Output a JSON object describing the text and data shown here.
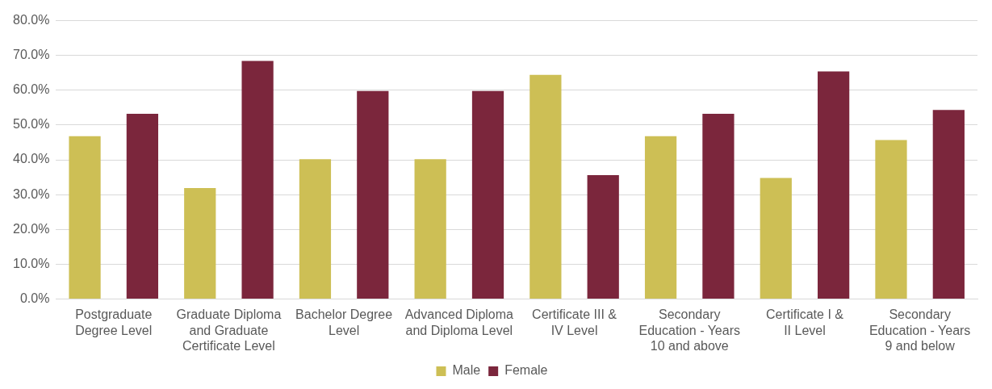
{
  "chart_data": {
    "type": "bar",
    "categories": [
      "Postgraduate Degree Level",
      "Graduate Diploma and Graduate Certificate Level",
      "Bachelor Degree Level",
      "Advanced Diploma and Diploma Level",
      "Certificate III & IV Level",
      "Secondary Education - Years 10 and above",
      "Certificate I & II Level",
      "Secondary Education - Years 9 and below"
    ],
    "series": [
      {
        "name": "Male",
        "color": "#cdbf55",
        "values": [
          46.8,
          31.9,
          40.2,
          40.2,
          64.4,
          46.8,
          34.8,
          45.7
        ]
      },
      {
        "name": "Female",
        "color": "#7b263c",
        "values": [
          53.2,
          68.4,
          59.8,
          59.8,
          35.6,
          53.2,
          65.4,
          54.3
        ]
      }
    ],
    "ylim": [
      0,
      80
    ],
    "yticks": [
      {
        "value": 0,
        "label": "0.0%"
      },
      {
        "value": 10,
        "label": "10.0%"
      },
      {
        "value": 20,
        "label": "20.0%"
      },
      {
        "value": 30,
        "label": "30.0%"
      },
      {
        "value": 40,
        "label": "40.0%"
      },
      {
        "value": 50,
        "label": "50.0%"
      },
      {
        "value": 60,
        "label": "60.0%"
      },
      {
        "value": 70,
        "label": "70.0%"
      },
      {
        "value": 80,
        "label": "80.0%"
      }
    ],
    "grid": "y",
    "legend": "bottom"
  }
}
